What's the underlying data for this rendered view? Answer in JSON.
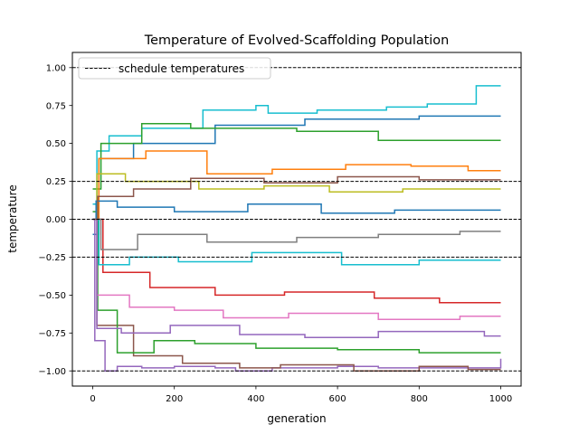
{
  "chart_data": {
    "type": "line",
    "title": "Temperature of Evolved-Scaffolding Population",
    "xlabel": "generation",
    "ylabel": "temperature",
    "xlim": [
      -50,
      1050
    ],
    "ylim": [
      -1.1,
      1.1
    ],
    "xticks": [
      0,
      200,
      400,
      600,
      800,
      1000
    ],
    "yticks": [
      -1.0,
      -0.75,
      -0.5,
      -0.25,
      0.0,
      0.25,
      0.5,
      0.75,
      1.0
    ],
    "xtick_labels": [
      "0",
      "200",
      "400",
      "600",
      "800",
      "1000"
    ],
    "ytick_labels": [
      "−1.00",
      "−0.75",
      "−0.50",
      "−0.25",
      "0.00",
      "0.25",
      "0.50",
      "0.75",
      "1.00"
    ],
    "grid": false,
    "legend": {
      "placement": "upper-left",
      "entries": [
        "schedule temperatures"
      ]
    },
    "schedule_temperatures": [
      -1.0,
      -0.25,
      0.0,
      0.25,
      1.0
    ],
    "series_colors": [
      "#1f77b4",
      "#ff7f0e",
      "#2ca02c",
      "#d62728",
      "#9467bd",
      "#8c564b",
      "#e377c2",
      "#7f7f7f",
      "#bcbd22",
      "#17becf"
    ],
    "series": [
      {
        "color": "#17becf",
        "x": [
          0,
          10,
          40,
          120,
          270,
          400,
          430,
          550,
          720,
          820,
          940,
          1000
        ],
        "y": [
          0.1,
          0.45,
          0.55,
          0.6,
          0.72,
          0.75,
          0.7,
          0.72,
          0.74,
          0.76,
          0.88,
          0.88
        ]
      },
      {
        "color": "#1f77b4",
        "x": [
          0,
          15,
          100,
          300,
          520,
          800,
          920,
          1000
        ],
        "y": [
          -0.1,
          0.4,
          0.5,
          0.62,
          0.66,
          0.68,
          0.68,
          0.68
        ]
      },
      {
        "color": "#2ca02c",
        "x": [
          0,
          20,
          120,
          240,
          500,
          700,
          1000
        ],
        "y": [
          0.2,
          0.5,
          0.63,
          0.6,
          0.58,
          0.52,
          0.52
        ]
      },
      {
        "color": "#9467bd",
        "x": [
          0,
          5,
          30,
          60,
          120,
          200,
          300,
          350,
          440,
          600,
          700,
          1000
        ],
        "y": [
          0.0,
          -0.8,
          -1.0,
          -0.97,
          -0.98,
          -0.97,
          -0.98,
          -1.0,
          -0.98,
          -0.97,
          -0.98,
          -0.92
        ]
      },
      {
        "color": "#8c564b",
        "x": [
          0,
          10,
          100,
          220,
          360,
          460,
          640,
          800,
          920,
          1000
        ],
        "y": [
          0.0,
          -0.7,
          -0.9,
          -0.95,
          -0.98,
          -0.96,
          -1.0,
          -0.97,
          -0.99,
          -0.99
        ]
      },
      {
        "color": "#2ca02c",
        "x": [
          0,
          12,
          60,
          150,
          250,
          400,
          600,
          800,
          1000
        ],
        "y": [
          0.05,
          -0.6,
          -0.88,
          -0.8,
          -0.82,
          -0.85,
          -0.86,
          -0.88,
          -0.88
        ]
      },
      {
        "color": "#e377c2",
        "x": [
          0,
          10,
          90,
          200,
          320,
          480,
          700,
          900,
          1000
        ],
        "y": [
          0.0,
          -0.5,
          -0.58,
          -0.6,
          -0.65,
          -0.62,
          -0.66,
          -0.64,
          -0.64
        ]
      },
      {
        "color": "#ff7f0e",
        "x": [
          0,
          15,
          130,
          280,
          440,
          620,
          780,
          920,
          1000
        ],
        "y": [
          0.0,
          0.4,
          0.45,
          0.3,
          0.33,
          0.36,
          0.35,
          0.32,
          0.32
        ]
      },
      {
        "color": "#d62728",
        "x": [
          0,
          25,
          140,
          300,
          470,
          690,
          850,
          1000
        ],
        "y": [
          0.0,
          -0.35,
          -0.45,
          -0.5,
          -0.48,
          -0.52,
          -0.55,
          -0.55
        ]
      },
      {
        "color": "#bcbd22",
        "x": [
          0,
          10,
          80,
          260,
          420,
          580,
          760,
          1000
        ],
        "y": [
          0.0,
          0.3,
          0.25,
          0.2,
          0.22,
          0.18,
          0.2,
          0.2
        ]
      },
      {
        "color": "#7f7f7f",
        "x": [
          0,
          20,
          110,
          280,
          500,
          700,
          900,
          1000
        ],
        "y": [
          0.0,
          -0.2,
          -0.1,
          -0.15,
          -0.12,
          -0.1,
          -0.08,
          -0.08
        ]
      },
      {
        "color": "#1f77b4",
        "x": [
          0,
          8,
          60,
          200,
          380,
          560,
          740,
          1000
        ],
        "y": [
          0.0,
          0.12,
          0.08,
          0.05,
          0.1,
          0.04,
          0.06,
          0.06
        ]
      },
      {
        "color": "#17becf",
        "x": [
          0,
          15,
          90,
          210,
          390,
          610,
          800,
          1000
        ],
        "y": [
          0.0,
          -0.3,
          -0.25,
          -0.28,
          -0.22,
          -0.3,
          -0.27,
          -0.27
        ]
      },
      {
        "color": "#9467bd",
        "x": [
          0,
          10,
          70,
          190,
          360,
          520,
          700,
          960,
          1000
        ],
        "y": [
          0.0,
          -0.72,
          -0.75,
          -0.7,
          -0.76,
          -0.78,
          -0.74,
          -0.77,
          -0.77
        ]
      },
      {
        "color": "#8c564b",
        "x": [
          0,
          12,
          100,
          240,
          420,
          600,
          800,
          1000
        ],
        "y": [
          0.0,
          0.15,
          0.2,
          0.27,
          0.24,
          0.28,
          0.26,
          0.26
        ]
      }
    ]
  }
}
